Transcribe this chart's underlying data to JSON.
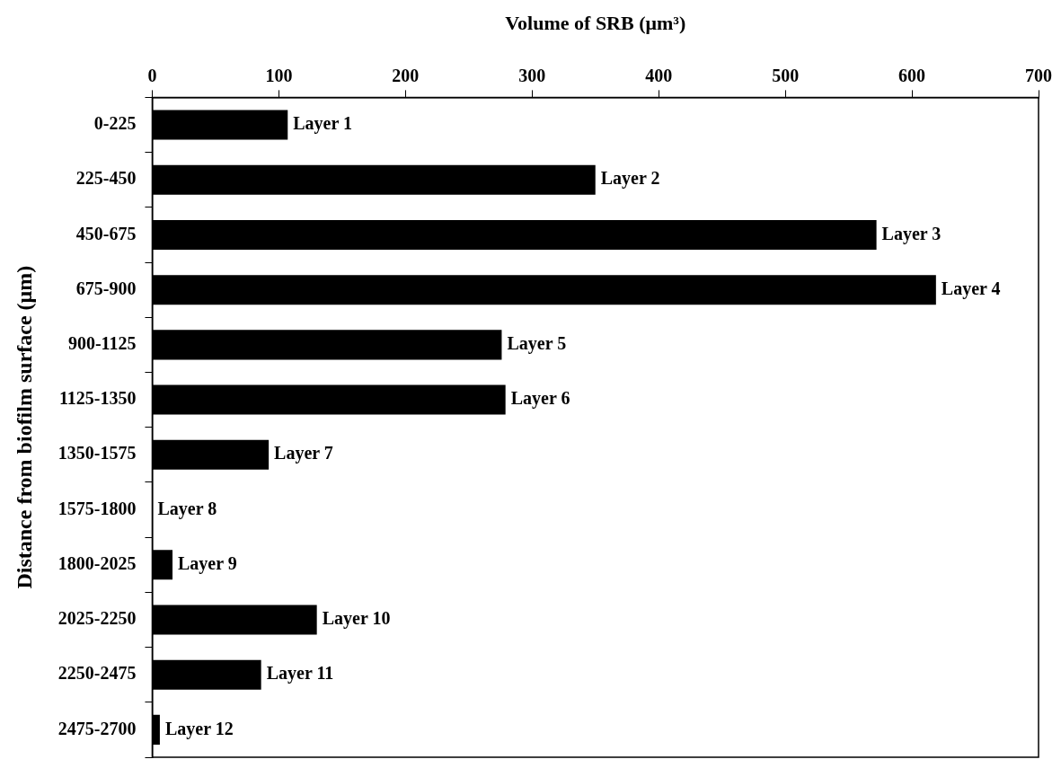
{
  "chart_data": {
    "type": "bar",
    "orientation": "horizontal",
    "xlabel": "Volume of SRB (μm³)",
    "ylabel": "Distance from biofilm surface (μm)",
    "categories": [
      "0-225",
      "225-450",
      "450-675",
      "675-900",
      "900-1125",
      "1125-1350",
      "1350-1575",
      "1575-1800",
      "1800-2025",
      "2025-2250",
      "2250-2475",
      "2475-2700"
    ],
    "values": [
      107,
      350,
      572,
      619,
      276,
      279,
      92,
      0,
      16,
      130,
      86,
      6
    ],
    "value_labels": [
      "Layer 1",
      "Layer 2",
      "Layer 3",
      "Layer 4",
      "Layer 5",
      "Layer 6",
      "Layer 7",
      "Layer 8",
      "Layer 9",
      "Layer 10",
      "Layer 11",
      "Layer 12"
    ],
    "color": "#000000",
    "xlim": [
      0,
      700
    ],
    "xticks": [
      0,
      100,
      200,
      300,
      400,
      500,
      600,
      700
    ],
    "grid": false,
    "legend": false
  }
}
